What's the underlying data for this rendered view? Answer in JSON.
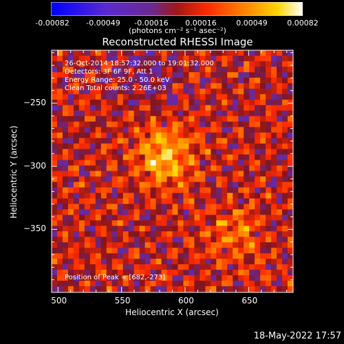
{
  "colorbar": {
    "ticks": [
      "-0.00082",
      "-0.00049",
      "-0.00016",
      "0.00016",
      "0.00049",
      "0.00082"
    ],
    "units": "(photons cm⁻² s⁻¹ asec⁻²)"
  },
  "chart_data": {
    "type": "heatmap",
    "title": "Reconstructed RHESSI Image",
    "xlabel": "Heliocentric X (arcsec)",
    "ylabel": "Heliocentric Y (arcsec)",
    "xlim": [
      495,
      685
    ],
    "ylim": [
      -400,
      -208
    ],
    "xticks": [
      500,
      550,
      600,
      650
    ],
    "yticks": [
      -250,
      -300,
      -350
    ],
    "xtick_labels": [
      "500",
      "550",
      "600",
      "650"
    ],
    "ytick_labels": [
      "−250",
      "−300",
      "−350"
    ],
    "color_range": [
      -0.00082,
      0.00082
    ],
    "colormap": "blue-purple-red-orange-yellow-white",
    "peak": [
      682,
      -273
    ],
    "annotations": [
      "26-Oct-2014 18:57:32.000 to 19:01:32.000",
      "Detectors: 3F 6F 9F, Att 1",
      "Energy Range: 25.0 - 50.0 keV",
      "Clean     Total counts: 2.26E+03"
    ],
    "peak_label": "Position of Peak = [682,-273]"
  },
  "timestamp": "18-May-2022 17:57"
}
